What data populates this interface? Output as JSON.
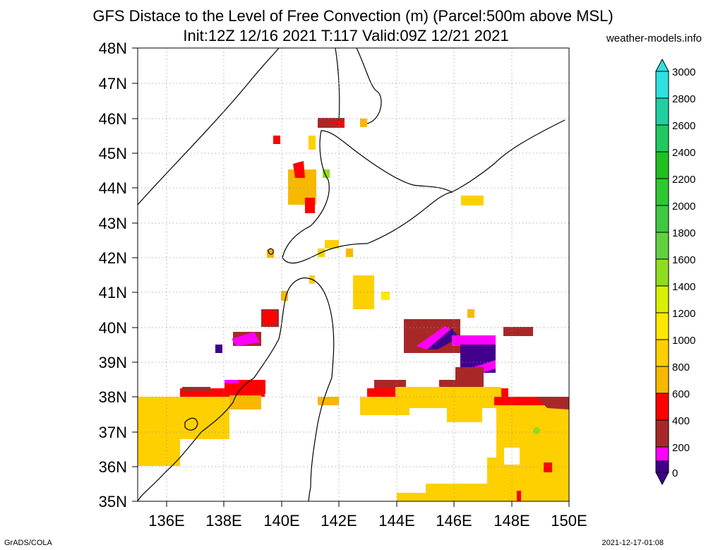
{
  "title_line1": "GFS Distace to the Level of Free Convection (m) (Parcel:500m above MSL)",
  "title_line2": "Init:12Z 12/16 2021 T:117 Valid:09Z 12/21 2021",
  "site": "weather-models.info",
  "footer_left": "GrADS/COLA",
  "footer_right": "2021-12-17-01:08",
  "map": {
    "lon_range": [
      135,
      150
    ],
    "lat_range": [
      35,
      48
    ],
    "lat_ticks": [
      "48N",
      "47N",
      "46N",
      "45N",
      "44N",
      "43N",
      "42N",
      "41N",
      "40N",
      "39N",
      "38N",
      "37N",
      "36N",
      "35N"
    ],
    "lon_ticks": [
      "136E",
      "138E",
      "140E",
      "142E",
      "144E",
      "146E",
      "148E",
      "150E"
    ],
    "grid": "dotted"
  },
  "colorbar": {
    "labels": [
      "3000",
      "2800",
      "2600",
      "2400",
      "2200",
      "2000",
      "1800",
      "1600",
      "1400",
      "1200",
      "1000",
      "800",
      "600",
      "400",
      "200",
      "0"
    ],
    "colors": [
      "#30e0e0",
      "#20d0a0",
      "#20c860",
      "#20c020",
      "#30c830",
      "#40c840",
      "#60d040",
      "#90dc20",
      "#d8f000",
      "#ffe800",
      "#ffd000",
      "#f8b800",
      "#ff0000",
      "#a82828",
      "#ff00ff",
      "#40008c"
    ]
  },
  "palette": {
    "c0": "#40008c",
    "c200": "#ff00ff",
    "c400": "#a82828",
    "c600": "#ff0000",
    "c800": "#f8b800",
    "c1000": "#ffd000",
    "c1200": "#ffe800",
    "c1600": "#90dc20"
  }
}
